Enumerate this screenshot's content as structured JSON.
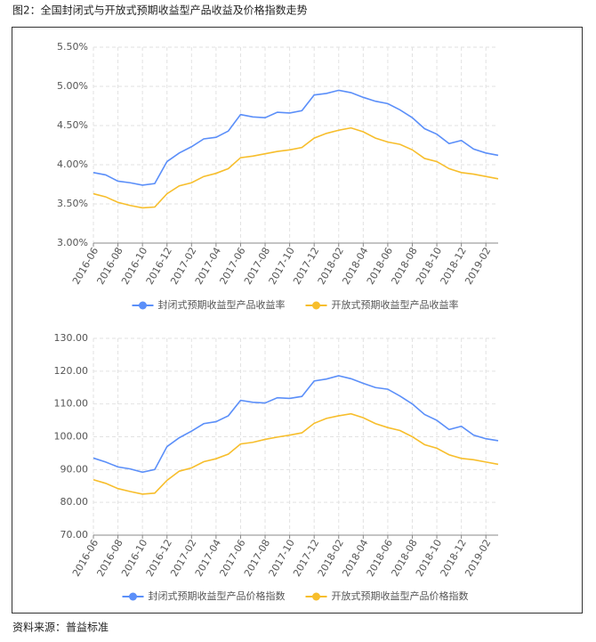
{
  "caption": "图2：全国封闭式与开放式预期收益型产品收益及价格指数走势",
  "source": "资料来源：普益标准",
  "chart_data": [
    {
      "type": "line",
      "categories": [
        "2016-06",
        null,
        "2016-08",
        null,
        "2016-10",
        null,
        "2016-12",
        null,
        "2017-02",
        null,
        "2017-04",
        null,
        "2017-06",
        null,
        "2017-08",
        null,
        "2017-10",
        null,
        "2017-12",
        null,
        "2018-02",
        null,
        "2018-04",
        null,
        "2018-06",
        null,
        "2018-08",
        null,
        "2018-10",
        null,
        "2018-12",
        null,
        "2019-02",
        null
      ],
      "ylim": [
        3,
        5.5
      ],
      "yticks": [
        {
          "value": 3,
          "label": "3.00%"
        },
        {
          "value": 3.5,
          "label": "3.50%"
        },
        {
          "value": 4,
          "label": "4.00%"
        },
        {
          "value": 4.5,
          "label": "4.50%"
        },
        {
          "value": 5,
          "label": "5.00%"
        },
        {
          "value": 5.5,
          "label": "5.50%"
        }
      ],
      "grid": true,
      "legend": "bottom",
      "series": [
        {
          "name": "封闭式预期收益型产品收益率",
          "color": "#5b8ff9",
          "values": [
            3.9,
            3.87,
            3.79,
            3.77,
            3.74,
            3.76,
            4.04,
            4.15,
            4.23,
            4.33,
            4.35,
            4.43,
            4.64,
            4.61,
            4.6,
            4.67,
            4.66,
            4.69,
            4.89,
            4.91,
            4.95,
            4.92,
            4.86,
            4.81,
            4.78,
            4.7,
            4.6,
            4.46,
            4.39,
            4.27,
            4.31,
            4.2,
            4.15,
            4.12
          ]
        },
        {
          "name": "开放式预期收益型产品收益率",
          "color": "#f7be2c",
          "values": [
            3.63,
            3.59,
            3.52,
            3.48,
            3.45,
            3.46,
            3.63,
            3.73,
            3.77,
            3.85,
            3.89,
            3.95,
            4.09,
            4.11,
            4.14,
            4.17,
            4.19,
            4.22,
            4.34,
            4.4,
            4.44,
            4.47,
            4.42,
            4.34,
            4.29,
            4.26,
            4.19,
            4.08,
            4.04,
            3.95,
            3.9,
            3.88,
            3.85,
            3.82
          ]
        }
      ]
    },
    {
      "type": "line",
      "categories": [
        "2016-06",
        null,
        "2016-08",
        null,
        "2016-10",
        null,
        "2016-12",
        null,
        "2017-02",
        null,
        "2017-04",
        null,
        "2017-06",
        null,
        "2017-08",
        null,
        "2017-10",
        null,
        "2017-12",
        null,
        "2018-02",
        null,
        "2018-04",
        null,
        "2018-06",
        null,
        "2018-08",
        null,
        "2018-10",
        null,
        "2018-12",
        null,
        "2019-02",
        null
      ],
      "ylim": [
        70,
        130
      ],
      "yticks": [
        {
          "value": 70,
          "label": "70.00"
        },
        {
          "value": 80,
          "label": "80.00"
        },
        {
          "value": 90,
          "label": "90.00"
        },
        {
          "value": 100,
          "label": "100.00"
        },
        {
          "value": 110,
          "label": "110.00"
        },
        {
          "value": 120,
          "label": "120.00"
        },
        {
          "value": 130,
          "label": "130.00"
        }
      ],
      "grid": true,
      "legend": "bottom",
      "series": [
        {
          "name": "封闭式预期收益型产品价格指数",
          "color": "#5b8ff9",
          "values": [
            93.5,
            92.3,
            90.8,
            90.2,
            89.2,
            90.0,
            97.0,
            99.7,
            101.7,
            104.0,
            104.6,
            106.4,
            111.1,
            110.5,
            110.3,
            111.9,
            111.7,
            112.3,
            117.0,
            117.6,
            118.6,
            117.7,
            116.3,
            115.0,
            114.5,
            112.4,
            110.0,
            106.8,
            105.0,
            102.2,
            103.2,
            100.5,
            99.4,
            98.8
          ]
        },
        {
          "name": "开放式预期收益型产品价格指数",
          "color": "#f7be2c",
          "values": [
            86.9,
            85.8,
            84.2,
            83.3,
            82.5,
            82.8,
            86.7,
            89.5,
            90.5,
            92.4,
            93.3,
            94.7,
            97.8,
            98.3,
            99.2,
            99.9,
            100.5,
            101.2,
            104.1,
            105.6,
            106.4,
            107.0,
            105.8,
            104.0,
            102.8,
            101.9,
            100.0,
            97.6,
            96.5,
            94.5,
            93.4,
            93.0,
            92.3,
            91.6
          ]
        }
      ]
    }
  ]
}
